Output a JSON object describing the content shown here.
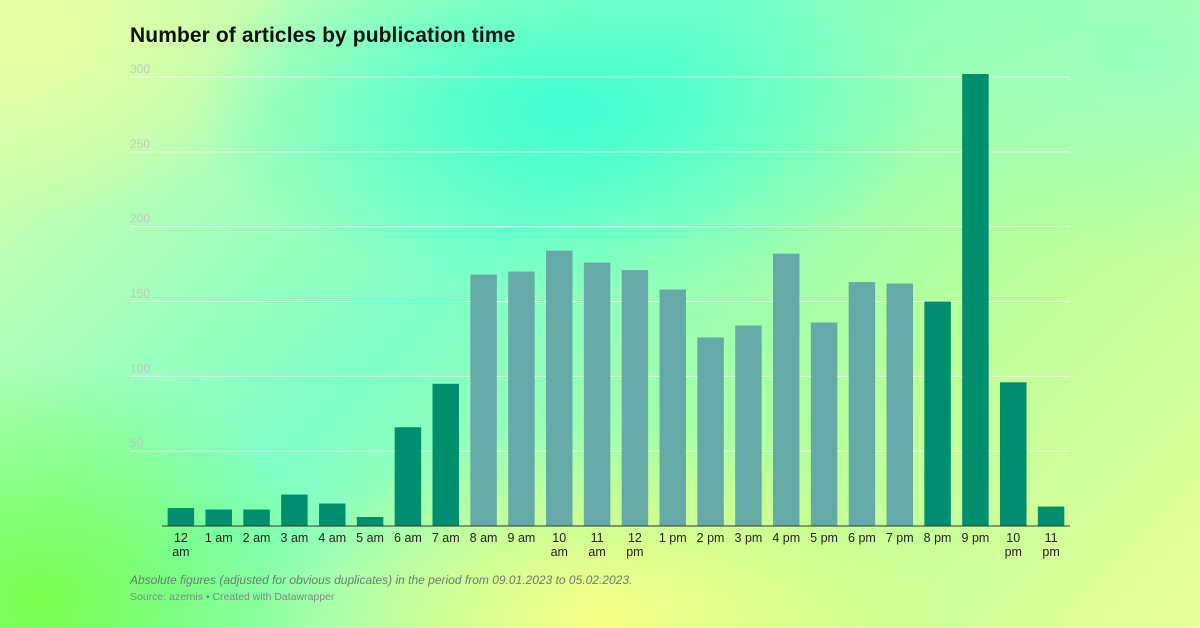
{
  "chart_data": {
    "type": "bar",
    "title": "Number of articles by publication time",
    "xlabel": "",
    "ylabel": "",
    "ylim": [
      0,
      300
    ],
    "yticks": [
      50,
      100,
      150,
      200,
      250,
      300
    ],
    "grid": true,
    "categories": [
      "12 am",
      "1 am",
      "2 am",
      "3 am",
      "4 am",
      "5 am",
      "6 am",
      "7 am",
      "8 am",
      "9 am",
      "10 am",
      "11 am",
      "12 pm",
      "1 pm",
      "2 pm",
      "3 pm",
      "4 pm",
      "5 pm",
      "6 pm",
      "7 pm",
      "8 pm",
      "9 pm",
      "10 pm",
      "11 pm"
    ],
    "values": [
      12,
      11,
      11,
      21,
      15,
      6,
      66,
      95,
      168,
      170,
      184,
      176,
      171,
      158,
      126,
      134,
      182,
      136,
      163,
      162,
      150,
      302,
      96,
      13
    ],
    "colors": {
      "highlight": "#008f6e",
      "normal": "#66aaa8",
      "gridline": "#ffffff",
      "axis": "#333333"
    },
    "bar_color_groups": [
      "highlight",
      "highlight",
      "highlight",
      "highlight",
      "highlight",
      "highlight",
      "highlight",
      "highlight",
      "normal",
      "normal",
      "normal",
      "normal",
      "normal",
      "normal",
      "normal",
      "normal",
      "normal",
      "normal",
      "normal",
      "normal",
      "highlight",
      "highlight",
      "highlight",
      "highlight"
    ],
    "note": "Absolute figures (adjusted for obvious duplicates) in the period from 09.01.2023 to 05.02.2023.",
    "source": "Source: azernis • Created with Datawrapper"
  }
}
